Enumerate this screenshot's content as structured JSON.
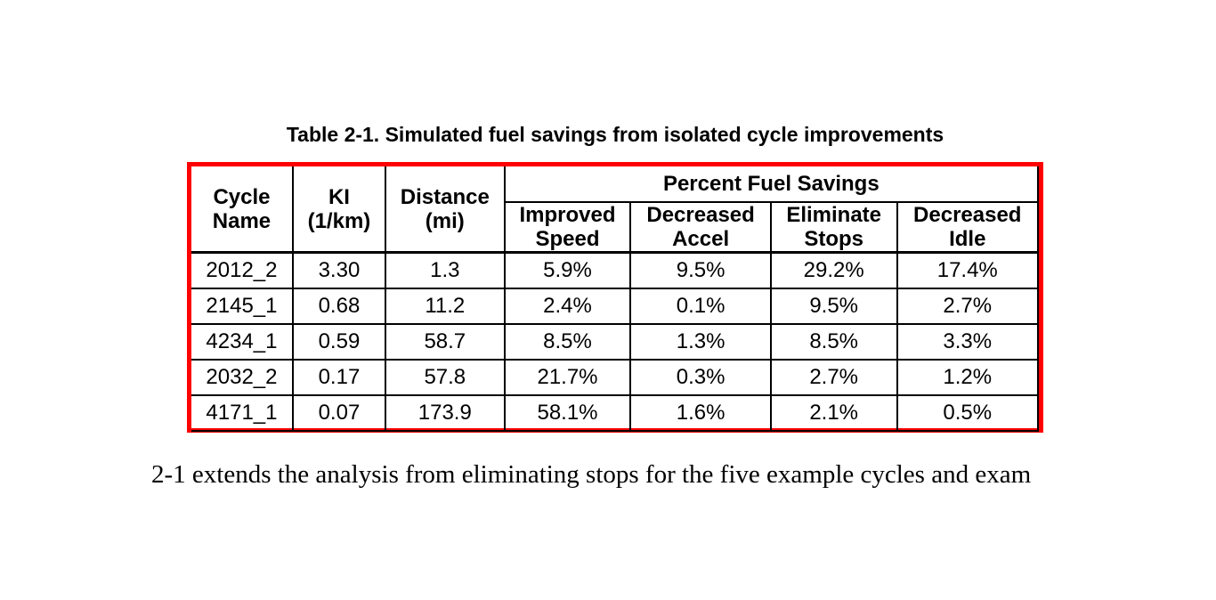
{
  "caption": {
    "text": "Table 2-1. Simulated fuel savings from isolated cycle improvements"
  },
  "table": {
    "group_header": "Percent Fuel Savings",
    "columns": [
      "Cycle\nName",
      "KI\n(1/km)",
      "Distance\n(mi)",
      "Improved\nSpeed",
      "Decreased\nAccel",
      "Eliminate\nStops",
      "Decreased\nIdle"
    ],
    "rows": [
      [
        "2012_2",
        "3.30",
        "1.3",
        "5.9%",
        "9.5%",
        "29.2%",
        "17.4%"
      ],
      [
        "2145_1",
        "0.68",
        "11.2",
        "2.4%",
        "0.1%",
        "9.5%",
        "2.7%"
      ],
      [
        "4234_1",
        "0.59",
        "58.7",
        "8.5%",
        "1.3%",
        "8.5%",
        "3.3%"
      ],
      [
        "2032_2",
        "0.17",
        "57.8",
        "21.7%",
        "0.3%",
        "2.7%",
        "1.2%"
      ],
      [
        "4171_1",
        "0.07",
        "173.9",
        "58.1%",
        "1.6%",
        "2.1%",
        "0.5%"
      ]
    ]
  },
  "body_text": {
    "text": "2-1 extends the analysis from eliminating stops for the five example cycles and exam"
  },
  "colors": {
    "frame_red": "#fe0000",
    "grid_black": "#000000",
    "text_black": "#000000",
    "background": "#ffffff"
  }
}
